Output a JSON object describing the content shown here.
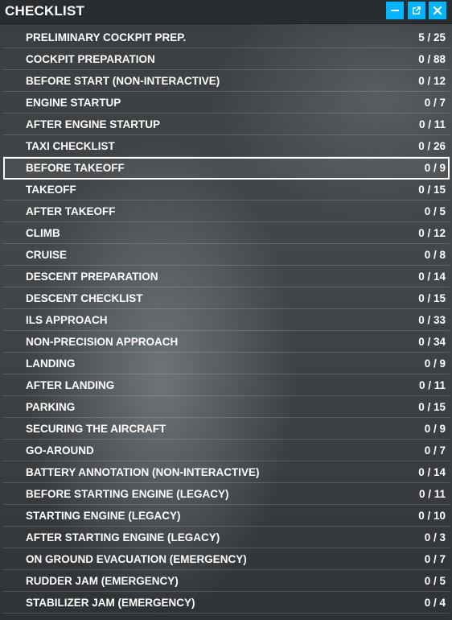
{
  "window": {
    "title": "CHECKLIST",
    "accent_color": "#00b4ff",
    "buttons": [
      {
        "name": "minimize",
        "icon": "minimize-icon"
      },
      {
        "name": "pop-out",
        "icon": "pop-out-icon"
      },
      {
        "name": "close",
        "icon": "close-icon"
      }
    ]
  },
  "checklists": [
    {
      "label": "PRELIMINARY COCKPIT PREP.",
      "count": "5 / 25"
    },
    {
      "label": "COCKPIT PREPARATION",
      "count": "0 / 88"
    },
    {
      "label": "BEFORE START (NON-INTERACTIVE)",
      "count": "0 / 12"
    },
    {
      "label": "ENGINE STARTUP",
      "count": "0 / 7"
    },
    {
      "label": "AFTER ENGINE STARTUP",
      "count": "0 / 11"
    },
    {
      "label": "TAXI CHECKLIST",
      "count": "0 / 26"
    },
    {
      "label": "BEFORE TAKEOFF",
      "count": "0 / 9",
      "selected": true
    },
    {
      "label": "TAKEOFF",
      "count": "0 / 15"
    },
    {
      "label": "AFTER TAKEOFF",
      "count": "0 / 5"
    },
    {
      "label": "CLIMB",
      "count": "0 / 12"
    },
    {
      "label": "CRUISE",
      "count": "0 / 8"
    },
    {
      "label": "DESCENT PREPARATION",
      "count": "0 / 14"
    },
    {
      "label": "DESCENT CHECKLIST",
      "count": "0 / 15"
    },
    {
      "label": "ILS APPROACH",
      "count": "0 / 33"
    },
    {
      "label": "NON-PRECISION APPROACH",
      "count": "0 / 34"
    },
    {
      "label": "LANDING",
      "count": "0 / 9"
    },
    {
      "label": "AFTER LANDING",
      "count": "0 / 11"
    },
    {
      "label": "PARKING",
      "count": "0 / 15"
    },
    {
      "label": "SECURING THE AIRCRAFT",
      "count": "0 / 9"
    },
    {
      "label": "GO-AROUND",
      "count": "0 / 7"
    },
    {
      "label": "BATTERY ANNOTATION (NON-INTERACTIVE)",
      "count": "0 / 14"
    },
    {
      "label": "BEFORE STARTING ENGINE (LEGACY)",
      "count": "0 / 11"
    },
    {
      "label": "STARTING ENGINE (LEGACY)",
      "count": "0 / 10"
    },
    {
      "label": "AFTER STARTING ENGINE (LEGACY)",
      "count": "0 / 3"
    },
    {
      "label": "ON GROUND EVACUATION (EMERGENCY)",
      "count": "0 / 7"
    },
    {
      "label": "RUDDER JAM (EMERGENCY)",
      "count": "0 / 5"
    },
    {
      "label": "STABILIZER JAM (EMERGENCY)",
      "count": "0 / 4"
    }
  ]
}
